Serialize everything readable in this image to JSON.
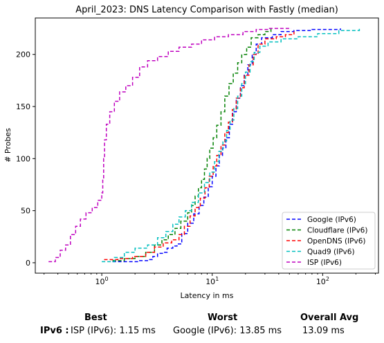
{
  "chart_data": {
    "type": "line",
    "title": "April_2023: DNS Latency Comparison with Fastly (median)",
    "xlabel": "Latency in ms",
    "ylabel": "# Probes",
    "xscale": "log",
    "xlim": [
      0.25,
      320
    ],
    "ylim": [
      -10,
      235
    ],
    "xticks": [
      1,
      10,
      100
    ],
    "xtick_labels": [
      "10^0",
      "10^1",
      "10^2"
    ],
    "yticks": [
      0,
      50,
      100,
      150,
      200
    ],
    "grid": false,
    "legend_position": "lower right",
    "series": [
      {
        "name": "Google (IPv6)",
        "color": "#0000ff",
        "dash": "dashed",
        "points": [
          [
            1.25,
            1
          ],
          [
            1.8,
            1
          ],
          [
            2.2,
            2
          ],
          [
            2.6,
            3
          ],
          [
            2.9,
            6
          ],
          [
            3.2,
            9
          ],
          [
            3.6,
            10
          ],
          [
            3.9,
            14
          ],
          [
            4.4,
            16
          ],
          [
            4.8,
            18
          ],
          [
            5.3,
            28
          ],
          [
            6.0,
            38
          ],
          [
            6.8,
            47
          ],
          [
            7.6,
            55
          ],
          [
            8.4,
            63
          ],
          [
            9.2,
            73
          ],
          [
            10,
            83
          ],
          [
            10.8,
            93
          ],
          [
            11.6,
            103
          ],
          [
            12.4,
            110
          ],
          [
            13.3,
            120
          ],
          [
            14.3,
            133
          ],
          [
            15.3,
            145
          ],
          [
            16.5,
            158
          ],
          [
            18,
            170
          ],
          [
            19.5,
            180
          ],
          [
            21,
            190
          ],
          [
            23,
            200
          ],
          [
            25,
            210
          ],
          [
            28,
            216
          ],
          [
            35,
            219
          ],
          [
            42,
            222
          ],
          [
            55,
            223
          ],
          [
            80,
            224
          ],
          [
            145,
            225
          ]
        ]
      },
      {
        "name": "Cloudflare (IPv6)",
        "color": "#008000",
        "dash": "dashed",
        "points": [
          [
            1.25,
            2
          ],
          [
            1.6,
            4
          ],
          [
            2.0,
            6
          ],
          [
            2.5,
            10
          ],
          [
            3.0,
            17
          ],
          [
            3.5,
            22
          ],
          [
            4.0,
            27
          ],
          [
            4.6,
            33
          ],
          [
            5.2,
            40
          ],
          [
            6.0,
            48
          ],
          [
            6.5,
            55
          ],
          [
            7.0,
            64
          ],
          [
            7.5,
            72
          ],
          [
            8.0,
            80
          ],
          [
            8.5,
            90
          ],
          [
            9.0,
            100
          ],
          [
            9.5,
            110
          ],
          [
            10.2,
            120
          ],
          [
            11,
            132
          ],
          [
            12,
            145
          ],
          [
            13,
            160
          ],
          [
            14.2,
            172
          ],
          [
            15.5,
            182
          ],
          [
            17,
            192
          ],
          [
            18.5,
            200
          ],
          [
            20.5,
            207
          ],
          [
            22.5,
            216
          ],
          [
            26,
            219
          ],
          [
            30,
            222
          ],
          [
            34,
            225
          ]
        ]
      },
      {
        "name": "OpenDNS (IPv6)",
        "color": "#ff0000",
        "dash": "dashed",
        "points": [
          [
            1.05,
            3
          ],
          [
            1.4,
            4
          ],
          [
            1.9,
            6
          ],
          [
            2.5,
            10
          ],
          [
            3.0,
            15
          ],
          [
            3.6,
            19
          ],
          [
            4.3,
            22
          ],
          [
            5.0,
            27
          ],
          [
            5.6,
            35
          ],
          [
            6.3,
            45
          ],
          [
            7.0,
            53
          ],
          [
            7.8,
            62
          ],
          [
            8.6,
            72
          ],
          [
            9.4,
            83
          ],
          [
            10.2,
            93
          ],
          [
            11,
            103
          ],
          [
            12,
            113
          ],
          [
            13,
            125
          ],
          [
            14,
            135
          ],
          [
            15.2,
            147
          ],
          [
            16.5,
            158
          ],
          [
            18,
            168
          ],
          [
            19.5,
            180
          ],
          [
            21.5,
            190
          ],
          [
            23.5,
            200
          ],
          [
            26,
            210
          ],
          [
            30,
            215
          ],
          [
            38,
            217
          ],
          [
            46,
            219
          ],
          [
            55,
            222
          ]
        ]
      },
      {
        "name": "Quad9 (IPv6)",
        "color": "#00bfbf",
        "dash": "dashed",
        "points": [
          [
            1.0,
            1
          ],
          [
            1.3,
            5
          ],
          [
            1.6,
            10
          ],
          [
            2.0,
            14
          ],
          [
            2.6,
            17
          ],
          [
            3.2,
            24
          ],
          [
            3.8,
            30
          ],
          [
            4.4,
            37
          ],
          [
            5.0,
            44
          ],
          [
            5.7,
            50
          ],
          [
            6.5,
            58
          ],
          [
            7.5,
            67
          ],
          [
            8.5,
            77
          ],
          [
            9.5,
            87
          ],
          [
            10.5,
            97
          ],
          [
            11.5,
            107
          ],
          [
            12.5,
            117
          ],
          [
            13.5,
            127
          ],
          [
            14.5,
            137
          ],
          [
            15.7,
            148
          ],
          [
            17,
            160
          ],
          [
            18.5,
            172
          ],
          [
            20,
            183
          ],
          [
            22,
            193
          ],
          [
            24,
            202
          ],
          [
            27,
            208
          ],
          [
            32,
            212
          ],
          [
            42,
            215
          ],
          [
            60,
            217
          ],
          [
            90,
            220
          ],
          [
            140,
            223
          ],
          [
            215,
            225
          ]
        ]
      },
      {
        "name": "ISP (IPv6)",
        "color": "#bf00bf",
        "dash": "dashed",
        "points": [
          [
            0.33,
            1
          ],
          [
            0.38,
            5
          ],
          [
            0.42,
            12
          ],
          [
            0.47,
            17
          ],
          [
            0.52,
            27
          ],
          [
            0.58,
            35
          ],
          [
            0.64,
            42
          ],
          [
            0.72,
            48
          ],
          [
            0.82,
            53
          ],
          [
            0.92,
            60
          ],
          [
            1.0,
            67
          ],
          [
            1.02,
            80
          ],
          [
            1.04,
            100
          ],
          [
            1.06,
            118
          ],
          [
            1.1,
            133
          ],
          [
            1.18,
            145
          ],
          [
            1.3,
            155
          ],
          [
            1.45,
            164
          ],
          [
            1.65,
            170
          ],
          [
            1.9,
            178
          ],
          [
            2.2,
            188
          ],
          [
            2.6,
            194
          ],
          [
            3.2,
            198
          ],
          [
            4.0,
            203
          ],
          [
            5.0,
            207
          ],
          [
            6.5,
            210
          ],
          [
            8.0,
            214
          ],
          [
            10.5,
            217
          ],
          [
            14,
            219
          ],
          [
            19,
            222
          ],
          [
            25,
            224
          ],
          [
            33,
            225
          ],
          [
            52,
            225
          ]
        ]
      }
    ]
  },
  "summary": {
    "header_best": "Best",
    "header_worst": "Worst",
    "header_avg": "Overall Avg",
    "row_label": "IPv6 :",
    "best": "ISP (IPv6): 1.15 ms",
    "worst": "Google (IPv6): 13.85 ms",
    "avg": "13.09 ms"
  }
}
